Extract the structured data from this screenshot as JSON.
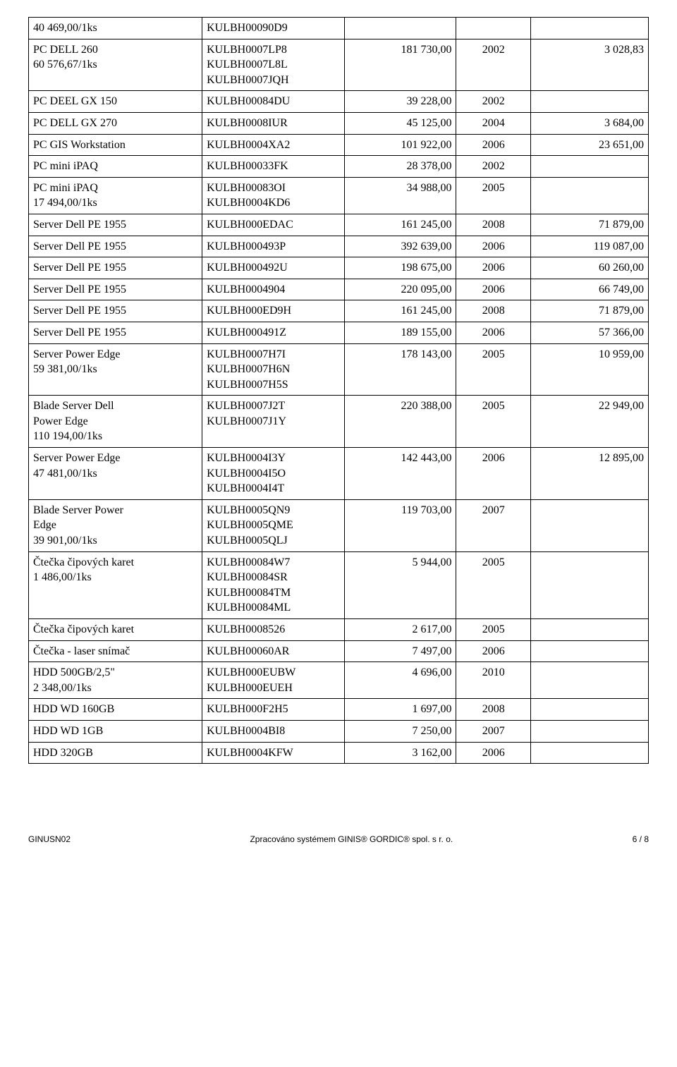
{
  "rows": [
    {
      "c1": [
        "40 469,00/1ks"
      ],
      "c2": [
        "KULBH00090D9"
      ],
      "c3": "",
      "c4": "",
      "c5": ""
    },
    {
      "c1": [
        "PC DELL 260",
        "60 576,67/1ks"
      ],
      "c2": [
        "KULBH0007LP8",
        "KULBH0007L8L",
        "KULBH0007JQH"
      ],
      "c3": "181 730,00",
      "c4": "2002",
      "c5": "3 028,83"
    },
    {
      "c1": [
        "PC DEEL GX 150"
      ],
      "c2": [
        "KULBH00084DU"
      ],
      "c3": "39 228,00",
      "c4": "2002",
      "c5": ""
    },
    {
      "c1": [
        "PC DELL GX 270"
      ],
      "c2": [
        "KULBH0008IUR"
      ],
      "c3": "45 125,00",
      "c4": "2004",
      "c5": "3 684,00"
    },
    {
      "c1": [
        "PC GIS Workstation"
      ],
      "c2": [
        "KULBH0004XA2"
      ],
      "c3": "101 922,00",
      "c4": "2006",
      "c5": "23 651,00"
    },
    {
      "c1": [
        "PC mini iPAQ"
      ],
      "c2": [
        "KULBH00033FK"
      ],
      "c3": "28 378,00",
      "c4": "2002",
      "c5": ""
    },
    {
      "c1": [
        "PC mini iPAQ",
        "17 494,00/1ks"
      ],
      "c2": [
        "KULBH00083OI",
        "KULBH0004KD6"
      ],
      "c3": "34 988,00",
      "c4": "2005",
      "c5": ""
    },
    {
      "c1": [
        "Server Dell PE 1955"
      ],
      "c2": [
        "KULBH000EDAC"
      ],
      "c3": "161 245,00",
      "c4": "2008",
      "c5": "71 879,00"
    },
    {
      "c1": [
        "Server Dell PE 1955"
      ],
      "c2": [
        "KULBH000493P"
      ],
      "c3": "392 639,00",
      "c4": "2006",
      "c5": "119 087,00"
    },
    {
      "c1": [
        "Server Dell PE 1955"
      ],
      "c2": [
        "KULBH000492U"
      ],
      "c3": "198 675,00",
      "c4": "2006",
      "c5": "60 260,00"
    },
    {
      "c1": [
        "Server Dell PE 1955"
      ],
      "c2": [
        "KULBH0004904"
      ],
      "c3": "220 095,00",
      "c4": "2006",
      "c5": "66 749,00"
    },
    {
      "c1": [
        "Server Dell PE 1955"
      ],
      "c2": [
        "KULBH000ED9H"
      ],
      "c3": "161 245,00",
      "c4": "2008",
      "c5": "71 879,00"
    },
    {
      "c1": [
        "Server Dell PE 1955"
      ],
      "c2": [
        "KULBH000491Z"
      ],
      "c3": "189 155,00",
      "c4": "2006",
      "c5": "57 366,00"
    },
    {
      "c1": [
        "Server Power Edge",
        "59 381,00/1ks"
      ],
      "c2": [
        "KULBH0007H7I",
        "KULBH0007H6N",
        "KULBH0007H5S"
      ],
      "c3": "178 143,00",
      "c4": "2005",
      "c5": "10 959,00"
    },
    {
      "c1": [
        "Blade Server Dell",
        "Power Edge",
        "110 194,00/1ks"
      ],
      "c2": [
        "KULBH0007J2T",
        "KULBH0007J1Y"
      ],
      "c3": "220 388,00",
      "c4": "2005",
      "c5": "22 949,00"
    },
    {
      "c1": [
        "Server Power Edge",
        "47 481,00/1ks"
      ],
      "c2": [
        "KULBH0004I3Y",
        "KULBH0004I5O",
        "KULBH0004I4T"
      ],
      "c3": "142 443,00",
      "c4": "2006",
      "c5": "12 895,00"
    },
    {
      "c1": [
        "Blade Server  Power",
        "Edge",
        "39 901,00/1ks"
      ],
      "c2": [
        "KULBH0005QN9",
        "KULBH0005QME",
        "KULBH0005QLJ"
      ],
      "c3": "119 703,00",
      "c4": "2007",
      "c5": ""
    },
    {
      "c1": [
        "Čtečka čipových karet",
        "1 486,00/1ks"
      ],
      "c2": [
        "KULBH00084W7",
        "KULBH00084SR",
        "KULBH00084TM",
        "KULBH00084ML"
      ],
      "c3": "5 944,00",
      "c4": "2005",
      "c5": ""
    },
    {
      "c1": [
        "Čtečka čipových karet"
      ],
      "c2": [
        "KULBH0008526"
      ],
      "c3": "2 617,00",
      "c4": "2005",
      "c5": ""
    },
    {
      "c1": [
        "Čtečka - laser snímač"
      ],
      "c2": [
        "KULBH00060AR"
      ],
      "c3": "7 497,00",
      "c4": "2006",
      "c5": ""
    },
    {
      "c1": [
        "HDD 500GB/2,5\"",
        "2 348,00/1ks"
      ],
      "c2": [
        "KULBH000EUBW",
        "KULBH000EUEH"
      ],
      "c3": "4 696,00",
      "c4": "2010",
      "c5": ""
    },
    {
      "c1": [
        "HDD WD 160GB"
      ],
      "c2": [
        "KULBH000F2H5"
      ],
      "c3": "1 697,00",
      "c4": "2008",
      "c5": ""
    },
    {
      "c1": [
        "HDD WD 1GB"
      ],
      "c2": [
        "KULBH0004BI8"
      ],
      "c3": "7 250,00",
      "c4": "2007",
      "c5": ""
    },
    {
      "c1": [
        "HDD 320GB"
      ],
      "c2": [
        "KULBH0004KFW"
      ],
      "c3": "3 162,00",
      "c4": "2006",
      "c5": ""
    }
  ],
  "footer": {
    "left": "GINUSN02",
    "center": "Zpracováno systémem GINIS® GORDIC® spol. s  r. o.",
    "right": "6  /  8"
  }
}
